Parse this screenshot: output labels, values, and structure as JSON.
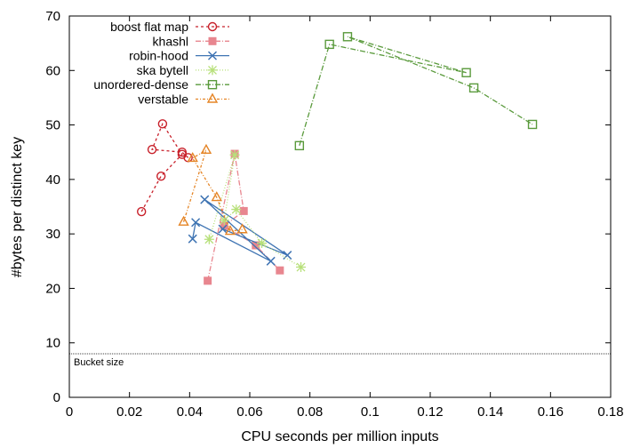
{
  "chart_data": {
    "type": "line",
    "xlabel": "CPU seconds per million inputs",
    "ylabel": "#bytes per distinct key",
    "xlim": [
      0,
      0.18
    ],
    "ylim": [
      0,
      70
    ],
    "xticks": [
      0,
      0.02,
      0.04,
      0.06,
      0.08,
      0.1,
      0.12,
      0.14,
      0.16,
      0.18
    ],
    "xtick_labels": [
      "0",
      "0.02",
      "0.04",
      "0.06",
      "0.08",
      "0.1",
      "0.12",
      "0.14",
      "0.16",
      "0.18"
    ],
    "yticks": [
      0,
      10,
      20,
      30,
      40,
      50,
      60,
      70
    ],
    "ytick_labels": [
      "0",
      "10",
      "20",
      "30",
      "40",
      "50",
      "60",
      "70"
    ],
    "grid": false,
    "legend_position": "top-left",
    "reference_line": {
      "y": 8,
      "label": "Bucket size",
      "color": "#000000"
    },
    "series": [
      {
        "name": "boost flat map",
        "color": "#c8202a",
        "marker": "circle",
        "dash": "3,3",
        "x": [
          0.024,
          0.0305,
          0.0375,
          0.031,
          0.0275,
          0.0375,
          0.0395
        ],
        "y": [
          34.1,
          40.6,
          44.6,
          50.2,
          45.5,
          45.0,
          44.0
        ]
      },
      {
        "name": "khashl",
        "color": "#e8868f",
        "marker": "square",
        "dash": "6,2,1,2",
        "x": [
          0.046,
          0.055,
          0.058,
          0.0515,
          0.062,
          0.07
        ],
        "y": [
          21.4,
          44.7,
          34.2,
          31.5,
          27.9,
          23.3
        ]
      },
      {
        "name": "robin-hood",
        "color": "#3f74b3",
        "marker": "x",
        "dash": "",
        "x": [
          0.041,
          0.042,
          0.067,
          0.045,
          0.0725,
          0.051
        ],
        "y": [
          29.1,
          32.1,
          25.0,
          36.3,
          26.1,
          30.9
        ]
      },
      {
        "name": "ska bytell",
        "color": "#b7e07a",
        "marker": "star",
        "dash": "1,2",
        "x": [
          0.0465,
          0.055,
          0.0515,
          0.0555,
          0.064,
          0.077
        ],
        "y": [
          29.0,
          44.5,
          32.5,
          34.5,
          28.3,
          23.9
        ]
      },
      {
        "name": "unordered-dense",
        "color": "#5a9a3c",
        "marker": "square-open",
        "dash": "6,2,1,2",
        "x": [
          0.0765,
          0.0865,
          0.132,
          0.0925,
          0.1345,
          0.154
        ],
        "y": [
          46.2,
          64.8,
          59.6,
          66.2,
          56.8,
          50.1
        ]
      },
      {
        "name": "verstable",
        "color": "#e58526",
        "marker": "triangle-open",
        "dash": "3,2,1,2",
        "x": [
          0.038,
          0.0455,
          0.041,
          0.049,
          0.0535,
          0.0575
        ],
        "y": [
          32.2,
          45.4,
          43.9,
          36.7,
          30.5,
          30.8
        ]
      }
    ]
  }
}
